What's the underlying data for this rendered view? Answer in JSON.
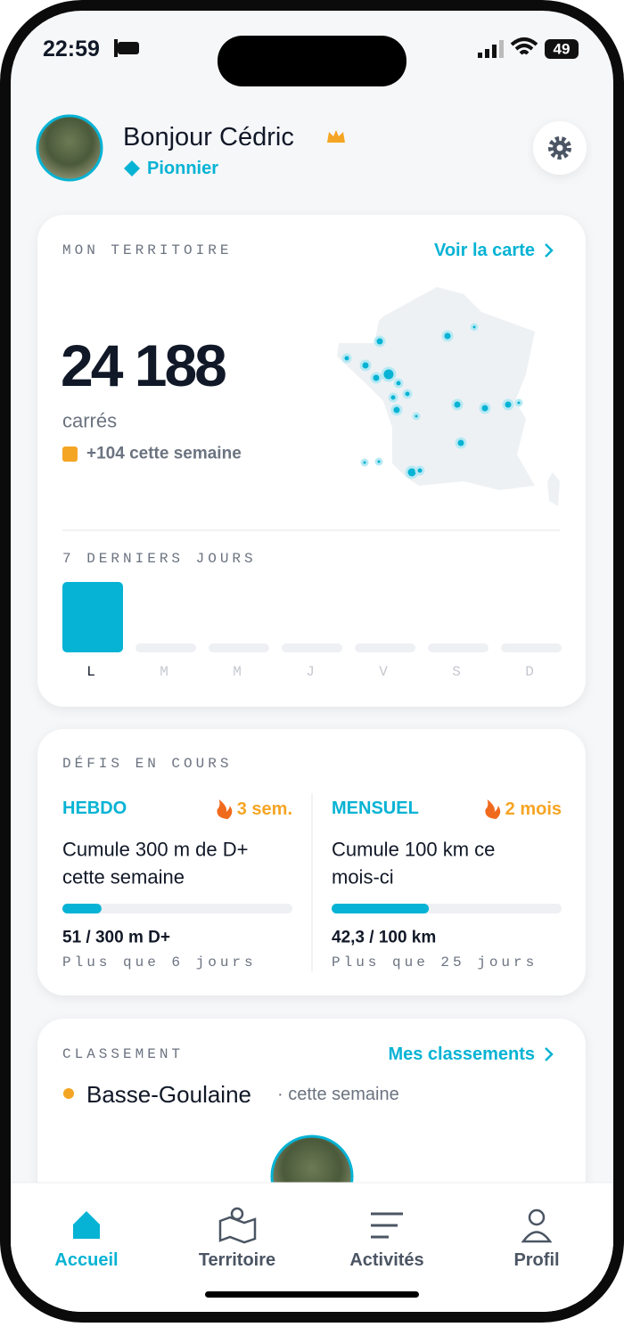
{
  "status_bar": {
    "time": "22:59",
    "battery": "49"
  },
  "header": {
    "greeting": "Bonjour Cédric",
    "badge": "Pionnier"
  },
  "territory": {
    "title": "MON TERRITOIRE",
    "link": "Voir la carte",
    "count": "24 188",
    "unit": "carrés",
    "weekly": "+104 cette semaine",
    "days_title": "7 DERNIERS JOURS",
    "days": [
      "L",
      "M",
      "M",
      "J",
      "V",
      "S",
      "D"
    ],
    "day_values": [
      104,
      0,
      0,
      0,
      0,
      0,
      0
    ]
  },
  "challenges": {
    "title": "DÉFIS EN COURS",
    "items": [
      {
        "label": "HEBDO",
        "streak": "3 sem.",
        "text_line1": "Cumule 300 m de D+",
        "text_line2": "cette semaine",
        "progress_text": "51 / 300 m D+",
        "current": 51,
        "target": 300,
        "remaining": "Plus que 6 jours"
      },
      {
        "label": "MENSUEL",
        "streak": "2 mois",
        "text_line1": "Cumule 100 km ce",
        "text_line2": "mois-ci",
        "progress_text": "42,3 / 100 km",
        "current": 42.3,
        "target": 100,
        "remaining": "Plus que 25 jours"
      }
    ]
  },
  "ranking": {
    "title": "CLASSEMENT",
    "link": "Mes classements",
    "place": "Basse-Goulaine",
    "period": "· cette semaine"
  },
  "nav": [
    "Accueil",
    "Territoire",
    "Activités",
    "Profil"
  ]
}
